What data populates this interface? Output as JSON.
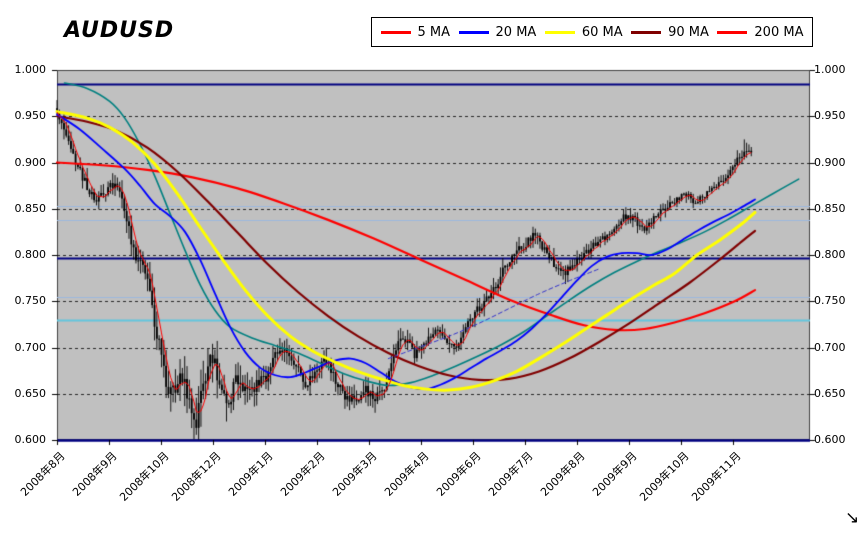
{
  "page": {
    "bg": "#FFFFFF"
  },
  "icons": {
    "resize_cursor": "↘"
  },
  "chart": {
    "title": "AUDUSD",
    "legend": {
      "items": [
        {
          "label": "5 MA",
          "color": "#FF0000"
        },
        {
          "label": "20 MA",
          "color": "#0000FF"
        },
        {
          "label": "60 MA",
          "color": "#FFFF00"
        },
        {
          "label": "90 MA",
          "color": "#800000"
        },
        {
          "label": "200 MA",
          "color": "#FF0000"
        }
      ]
    },
    "y_axis": {
      "ticks": [
        "1.000",
        "0.950",
        "0.900",
        "0.850",
        "0.800",
        "0.750",
        "0.700",
        "0.650",
        "0.600"
      ]
    },
    "x_axis": {
      "ticks": [
        "2008年8月",
        "2008年9月",
        "2008年10月",
        "2008年12月",
        "2009年1月",
        "2009年2月",
        "2009年3月",
        "2009年4月",
        "2009年6月",
        "2009年7月",
        "2009年8月",
        "2009年9月",
        "2009年10月",
        "2009年11月"
      ]
    }
  },
  "chart_data": {
    "type": "candlestick+line",
    "title": "AUDUSD",
    "ylim": [
      0.6,
      1.0
    ],
    "y_tick_step": 0.05,
    "x_labels": [
      "2008年8月",
      "2008年9月",
      "2008年10月",
      "2008年12月",
      "2009年1月",
      "2009年2月",
      "2009年3月",
      "2009年4月",
      "2009年6月",
      "2009年7月",
      "2009年8月",
      "2009年9月",
      "2009年10月",
      "2009年11月"
    ],
    "plot_bg": "#C0C0C0",
    "legend_position": "top-right",
    "gridlines": {
      "values": [
        0.95,
        0.9,
        0.85,
        0.8,
        0.75,
        0.7,
        0.65
      ],
      "style": "dashed",
      "color": "#000000"
    },
    "hlines": [
      {
        "value": 0.985,
        "color": "#000080",
        "width": 2
      },
      {
        "value": 0.853,
        "color": "#9DB8DE",
        "width": 1.2
      },
      {
        "value": 0.838,
        "color": "#9DB8DE",
        "width": 1.2
      },
      {
        "value": 0.797,
        "color": "#000080",
        "width": 2
      },
      {
        "value": 0.755,
        "color": "#9DB8DE",
        "width": 1.2
      },
      {
        "value": 0.73,
        "color": "#63C6DE",
        "width": 2
      },
      {
        "value": 0.6,
        "color": "#000080",
        "width": 2.5
      }
    ],
    "close_anchors": [
      [
        0.0,
        0.952
      ],
      [
        0.008,
        0.938
      ],
      [
        0.02,
        0.91
      ],
      [
        0.034,
        0.884
      ],
      [
        0.05,
        0.858
      ],
      [
        0.062,
        0.868
      ],
      [
        0.077,
        0.88
      ],
      [
        0.09,
        0.846
      ],
      [
        0.1,
        0.812
      ],
      [
        0.106,
        0.79
      ],
      [
        0.113,
        0.8
      ],
      [
        0.123,
        0.766
      ],
      [
        0.134,
        0.706
      ],
      [
        0.143,
        0.672
      ],
      [
        0.153,
        0.645
      ],
      [
        0.163,
        0.673
      ],
      [
        0.174,
        0.648
      ],
      [
        0.183,
        0.614
      ],
      [
        0.191,
        0.65
      ],
      [
        0.199,
        0.672
      ],
      [
        0.206,
        0.694
      ],
      [
        0.216,
        0.656
      ],
      [
        0.227,
        0.642
      ],
      [
        0.238,
        0.662
      ],
      [
        0.25,
        0.65
      ],
      [
        0.263,
        0.657
      ],
      [
        0.276,
        0.666
      ],
      [
        0.29,
        0.69
      ],
      [
        0.303,
        0.701
      ],
      [
        0.316,
        0.684
      ],
      [
        0.329,
        0.662
      ],
      [
        0.343,
        0.67
      ],
      [
        0.356,
        0.69
      ],
      [
        0.369,
        0.665
      ],
      [
        0.382,
        0.647
      ],
      [
        0.396,
        0.641
      ],
      [
        0.409,
        0.656
      ],
      [
        0.422,
        0.642
      ],
      [
        0.436,
        0.66
      ],
      [
        0.449,
        0.698
      ],
      [
        0.462,
        0.71
      ],
      [
        0.475,
        0.692
      ],
      [
        0.489,
        0.705
      ],
      [
        0.502,
        0.718
      ],
      [
        0.515,
        0.71
      ],
      [
        0.528,
        0.7
      ],
      [
        0.542,
        0.72
      ],
      [
        0.555,
        0.738
      ],
      [
        0.568,
        0.75
      ],
      [
        0.582,
        0.766
      ],
      [
        0.595,
        0.788
      ],
      [
        0.608,
        0.8
      ],
      [
        0.621,
        0.812
      ],
      [
        0.635,
        0.822
      ],
      [
        0.648,
        0.805
      ],
      [
        0.661,
        0.79
      ],
      [
        0.675,
        0.782
      ],
      [
        0.688,
        0.792
      ],
      [
        0.701,
        0.8
      ],
      [
        0.714,
        0.812
      ],
      [
        0.728,
        0.818
      ],
      [
        0.741,
        0.832
      ],
      [
        0.754,
        0.843
      ],
      [
        0.768,
        0.838
      ],
      [
        0.781,
        0.826
      ],
      [
        0.794,
        0.84
      ],
      [
        0.807,
        0.85
      ],
      [
        0.821,
        0.858
      ],
      [
        0.834,
        0.866
      ],
      [
        0.847,
        0.858
      ],
      [
        0.861,
        0.864
      ],
      [
        0.874,
        0.874
      ],
      [
        0.887,
        0.884
      ],
      [
        0.9,
        0.898
      ],
      [
        0.913,
        0.912
      ],
      [
        0.922,
        0.908
      ]
    ],
    "volatility_anchors": [
      [
        0.0,
        0.01
      ],
      [
        0.04,
        0.009
      ],
      [
        0.08,
        0.01
      ],
      [
        0.12,
        0.015
      ],
      [
        0.16,
        0.022
      ],
      [
        0.2,
        0.022
      ],
      [
        0.24,
        0.016
      ],
      [
        0.28,
        0.012
      ],
      [
        0.32,
        0.011
      ],
      [
        0.36,
        0.01
      ],
      [
        0.4,
        0.01
      ],
      [
        0.44,
        0.012
      ],
      [
        0.48,
        0.009
      ],
      [
        0.52,
        0.008
      ],
      [
        0.56,
        0.008
      ],
      [
        0.6,
        0.009
      ],
      [
        0.64,
        0.009
      ],
      [
        0.68,
        0.008
      ],
      [
        0.72,
        0.007
      ],
      [
        0.76,
        0.007
      ],
      [
        0.8,
        0.007
      ],
      [
        0.84,
        0.006
      ],
      [
        0.88,
        0.006
      ],
      [
        0.92,
        0.008
      ]
    ],
    "candles": {
      "count": 300,
      "x_max": 0.922,
      "seed": 987654321,
      "color": "#000000",
      "spikes": [
        {
          "x": 0.183,
          "low": 0.601
        },
        {
          "x": 0.206,
          "high": 0.704
        },
        {
          "x": 0.913,
          "high": 0.925
        }
      ]
    },
    "series": [
      {
        "name": "channel",
        "color": "#008080",
        "width": 1.6,
        "points": [
          [
            0.01,
            0.986
          ],
          [
            0.04,
            0.98
          ],
          [
            0.07,
            0.966
          ],
          [
            0.09,
            0.948
          ],
          [
            0.11,
            0.92
          ],
          [
            0.13,
            0.885
          ],
          [
            0.15,
            0.845
          ],
          [
            0.17,
            0.805
          ],
          [
            0.19,
            0.768
          ],
          [
            0.21,
            0.74
          ],
          [
            0.23,
            0.722
          ],
          [
            0.26,
            0.71
          ],
          [
            0.29,
            0.702
          ],
          [
            0.32,
            0.694
          ],
          [
            0.35,
            0.683
          ],
          [
            0.38,
            0.672
          ],
          [
            0.41,
            0.664
          ],
          [
            0.44,
            0.659
          ],
          [
            0.47,
            0.662
          ],
          [
            0.5,
            0.67
          ],
          [
            0.53,
            0.68
          ],
          [
            0.56,
            0.691
          ],
          [
            0.59,
            0.703
          ],
          [
            0.62,
            0.717
          ],
          [
            0.65,
            0.734
          ],
          [
            0.68,
            0.751
          ],
          [
            0.71,
            0.767
          ],
          [
            0.74,
            0.781
          ],
          [
            0.77,
            0.793
          ],
          [
            0.8,
            0.804
          ],
          [
            0.83,
            0.814
          ],
          [
            0.86,
            0.825
          ],
          [
            0.89,
            0.838
          ],
          [
            0.92,
            0.852
          ],
          [
            0.95,
            0.866
          ],
          [
            0.985,
            0.882
          ]
        ]
      },
      {
        "name": "200 MA",
        "color": "#FF0000",
        "width": 2.2,
        "points": [
          [
            0.0,
            0.9
          ],
          [
            0.06,
            0.897
          ],
          [
            0.12,
            0.892
          ],
          [
            0.18,
            0.884
          ],
          [
            0.24,
            0.872
          ],
          [
            0.3,
            0.856
          ],
          [
            0.36,
            0.838
          ],
          [
            0.42,
            0.818
          ],
          [
            0.48,
            0.796
          ],
          [
            0.54,
            0.774
          ],
          [
            0.6,
            0.752
          ],
          [
            0.66,
            0.734
          ],
          [
            0.7,
            0.724
          ],
          [
            0.74,
            0.719
          ],
          [
            0.78,
            0.72
          ],
          [
            0.82,
            0.727
          ],
          [
            0.86,
            0.737
          ],
          [
            0.9,
            0.75
          ],
          [
            0.927,
            0.762
          ]
        ]
      },
      {
        "name": "90 MA",
        "color": "#800000",
        "width": 2.2,
        "points": [
          [
            0.0,
            0.95
          ],
          [
            0.04,
            0.944
          ],
          [
            0.08,
            0.934
          ],
          [
            0.12,
            0.916
          ],
          [
            0.16,
            0.89
          ],
          [
            0.2,
            0.858
          ],
          [
            0.24,
            0.824
          ],
          [
            0.28,
            0.79
          ],
          [
            0.32,
            0.76
          ],
          [
            0.36,
            0.734
          ],
          [
            0.4,
            0.712
          ],
          [
            0.44,
            0.694
          ],
          [
            0.48,
            0.68
          ],
          [
            0.52,
            0.67
          ],
          [
            0.56,
            0.665
          ],
          [
            0.6,
            0.666
          ],
          [
            0.64,
            0.674
          ],
          [
            0.68,
            0.688
          ],
          [
            0.72,
            0.706
          ],
          [
            0.76,
            0.726
          ],
          [
            0.8,
            0.748
          ],
          [
            0.84,
            0.77
          ],
          [
            0.88,
            0.795
          ],
          [
            0.91,
            0.815
          ],
          [
            0.927,
            0.826
          ]
        ]
      },
      {
        "name": "signal",
        "color": "#3333CC",
        "width": 1,
        "dash": [
          4,
          3
        ],
        "points": [
          [
            0.44,
            0.688
          ],
          [
            0.48,
            0.7
          ],
          [
            0.52,
            0.712
          ],
          [
            0.56,
            0.726
          ],
          [
            0.6,
            0.742
          ],
          [
            0.64,
            0.758
          ],
          [
            0.68,
            0.772
          ],
          [
            0.72,
            0.785
          ]
        ]
      },
      {
        "name": "20 MA",
        "color": "#0000FF",
        "width": 1.8,
        "points": [
          [
            0.0,
            0.952
          ],
          [
            0.03,
            0.936
          ],
          [
            0.06,
            0.915
          ],
          [
            0.09,
            0.893
          ],
          [
            0.11,
            0.875
          ],
          [
            0.13,
            0.855
          ],
          [
            0.15,
            0.842
          ],
          [
            0.17,
            0.825
          ],
          [
            0.19,
            0.795
          ],
          [
            0.21,
            0.758
          ],
          [
            0.23,
            0.722
          ],
          [
            0.25,
            0.695
          ],
          [
            0.27,
            0.678
          ],
          [
            0.29,
            0.67
          ],
          [
            0.31,
            0.668
          ],
          [
            0.33,
            0.673
          ],
          [
            0.35,
            0.68
          ],
          [
            0.37,
            0.686
          ],
          [
            0.39,
            0.688
          ],
          [
            0.41,
            0.683
          ],
          [
            0.43,
            0.673
          ],
          [
            0.45,
            0.663
          ],
          [
            0.47,
            0.657
          ],
          [
            0.49,
            0.655
          ],
          [
            0.51,
            0.66
          ],
          [
            0.53,
            0.668
          ],
          [
            0.55,
            0.678
          ],
          [
            0.57,
            0.688
          ],
          [
            0.59,
            0.697
          ],
          [
            0.61,
            0.707
          ],
          [
            0.63,
            0.72
          ],
          [
            0.65,
            0.736
          ],
          [
            0.67,
            0.754
          ],
          [
            0.69,
            0.772
          ],
          [
            0.71,
            0.788
          ],
          [
            0.73,
            0.798
          ],
          [
            0.75,
            0.802
          ],
          [
            0.77,
            0.802
          ],
          [
            0.79,
            0.8
          ],
          [
            0.81,
            0.806
          ],
          [
            0.83,
            0.816
          ],
          [
            0.85,
            0.826
          ],
          [
            0.87,
            0.835
          ],
          [
            0.89,
            0.843
          ],
          [
            0.91,
            0.852
          ],
          [
            0.927,
            0.86
          ]
        ]
      },
      {
        "name": "60 MA",
        "color": "#FFFF00",
        "width": 3,
        "points": [
          [
            0.0,
            0.955
          ],
          [
            0.04,
            0.948
          ],
          [
            0.07,
            0.938
          ],
          [
            0.1,
            0.922
          ],
          [
            0.13,
            0.898
          ],
          [
            0.16,
            0.866
          ],
          [
            0.19,
            0.83
          ],
          [
            0.22,
            0.795
          ],
          [
            0.25,
            0.762
          ],
          [
            0.28,
            0.734
          ],
          [
            0.31,
            0.712
          ],
          [
            0.34,
            0.696
          ],
          [
            0.37,
            0.684
          ],
          [
            0.4,
            0.674
          ],
          [
            0.43,
            0.666
          ],
          [
            0.46,
            0.659
          ],
          [
            0.49,
            0.655
          ],
          [
            0.52,
            0.654
          ],
          [
            0.55,
            0.657
          ],
          [
            0.58,
            0.664
          ],
          [
            0.61,
            0.674
          ],
          [
            0.64,
            0.688
          ],
          [
            0.67,
            0.703
          ],
          [
            0.7,
            0.719
          ],
          [
            0.73,
            0.735
          ],
          [
            0.76,
            0.751
          ],
          [
            0.79,
            0.766
          ],
          [
            0.82,
            0.78
          ],
          [
            0.85,
            0.8
          ],
          [
            0.88,
            0.816
          ],
          [
            0.91,
            0.834
          ],
          [
            0.927,
            0.846
          ]
        ]
      },
      {
        "name": "5 MA",
        "color": "#FF0000",
        "width": 1,
        "derived": "sma_close_5"
      }
    ]
  }
}
